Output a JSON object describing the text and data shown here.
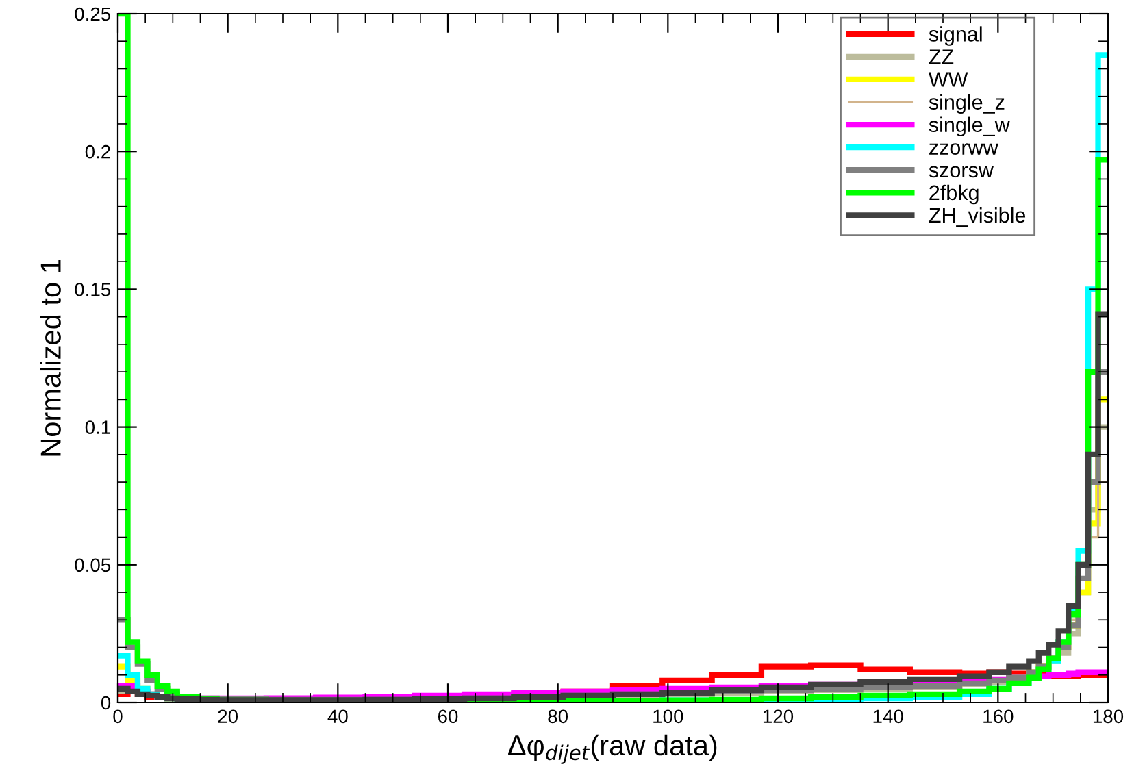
{
  "chart_data": {
    "type": "histogram",
    "xlabel": "Δφ$_{dijet}$(raw data)",
    "ylabel": "Normalized to 1",
    "bins": [
      0,
      1.8,
      3.6,
      5.4,
      7.2,
      9,
      10.8,
      14.4,
      18,
      27,
      36,
      45,
      54,
      63,
      72,
      81,
      90,
      99,
      108,
      117,
      126,
      135,
      144,
      153,
      158.4,
      162,
      165.6,
      167.4,
      169.2,
      171,
      172.8,
      174.6,
      176.4,
      178.2,
      180
    ],
    "xlim": [
      0,
      180
    ],
    "xticks": [
      0,
      20,
      40,
      60,
      80,
      100,
      120,
      140,
      160,
      180
    ],
    "ylim": [
      0,
      0.25
    ],
    "yticks": [
      0,
      0.05,
      0.1,
      0.15,
      0.2,
      0.25
    ],
    "legend": "top right",
    "grid": false,
    "series": [
      {
        "name": "signal",
        "color": "#ff0000",
        "values": [
          0.003,
          0.004,
          0.003,
          0.002,
          0.002,
          0.0015,
          0.0013,
          0.0012,
          0.0012,
          0.0012,
          0.0012,
          0.0013,
          0.0016,
          0.002,
          0.003,
          0.004,
          0.006,
          0.008,
          0.01,
          0.013,
          0.0135,
          0.012,
          0.011,
          0.0105,
          0.011,
          0.0105,
          0.01,
          0.01,
          0.0095,
          0.0095,
          0.0095,
          0.01,
          0.01,
          0.01
        ]
      },
      {
        "name": "ZZ",
        "color": "#bcbc9c",
        "values": [
          0.004,
          0.006,
          0.004,
          0.003,
          0.002,
          0.0015,
          0.001,
          0.001,
          0.0008,
          0.0008,
          0.0008,
          0.0009,
          0.001,
          0.0012,
          0.0015,
          0.002,
          0.0025,
          0.003,
          0.0035,
          0.004,
          0.0045,
          0.005,
          0.0055,
          0.0065,
          0.0075,
          0.009,
          0.011,
          0.013,
          0.015,
          0.018,
          0.025,
          0.04,
          0.07,
          0.1
        ]
      },
      {
        "name": "WW",
        "color": "#ffff00",
        "values": [
          0.013,
          0.008,
          0.005,
          0.003,
          0.002,
          0.0015,
          0.0012,
          0.001,
          0.001,
          0.001,
          0.0011,
          0.0013,
          0.0016,
          0.002,
          0.0025,
          0.003,
          0.0035,
          0.004,
          0.0045,
          0.005,
          0.0055,
          0.006,
          0.0065,
          0.007,
          0.008,
          0.009,
          0.011,
          0.013,
          0.016,
          0.02,
          0.028,
          0.04,
          0.065,
          0.11
        ]
      },
      {
        "name": "single_z",
        "color": "#d2b48c",
        "values": [
          0.006,
          0.005,
          0.004,
          0.003,
          0.002,
          0.0015,
          0.001,
          0.001,
          0.0008,
          0.0008,
          0.0008,
          0.0009,
          0.001,
          0.0012,
          0.0015,
          0.002,
          0.0025,
          0.003,
          0.0035,
          0.004,
          0.0045,
          0.005,
          0.0055,
          0.0065,
          0.0075,
          0.009,
          0.011,
          0.013,
          0.016,
          0.022,
          0.03,
          0.045,
          0.06,
          0.08
        ]
      },
      {
        "name": "single_w",
        "color": "#ff00ff",
        "values": [
          0.006,
          0.006,
          0.004,
          0.003,
          0.002,
          0.0018,
          0.0016,
          0.0015,
          0.0015,
          0.0016,
          0.0018,
          0.002,
          0.0025,
          0.003,
          0.0035,
          0.004,
          0.0045,
          0.005,
          0.0055,
          0.006,
          0.0065,
          0.007,
          0.0075,
          0.008,
          0.0085,
          0.009,
          0.0095,
          0.0095,
          0.01,
          0.01,
          0.0105,
          0.011,
          0.011,
          0.011
        ]
      },
      {
        "name": "zzorww",
        "color": "#00ffff",
        "values": [
          0.017,
          0.01,
          0.005,
          0.003,
          0.002,
          0.0015,
          0.001,
          0.0008,
          0.0006,
          0.0005,
          0.0005,
          0.0005,
          0.0005,
          0.0005,
          0.0006,
          0.0006,
          0.0007,
          0.0008,
          0.0009,
          0.001,
          0.0012,
          0.0015,
          0.002,
          0.003,
          0.005,
          0.007,
          0.009,
          0.012,
          0.015,
          0.022,
          0.033,
          0.055,
          0.15,
          0.235
        ]
      },
      {
        "name": "szorsw",
        "color": "#808080",
        "values": [
          0.03,
          0.02,
          0.014,
          0.008,
          0.005,
          0.003,
          0.002,
          0.0015,
          0.0012,
          0.001,
          0.001,
          0.001,
          0.0012,
          0.0015,
          0.002,
          0.0025,
          0.003,
          0.0035,
          0.004,
          0.0045,
          0.005,
          0.0055,
          0.006,
          0.007,
          0.008,
          0.009,
          0.011,
          0.013,
          0.016,
          0.02,
          0.028,
          0.045,
          0.08,
          0.12
        ]
      },
      {
        "name": "2fbkg",
        "color": "#00ff00",
        "values": [
          0.25,
          0.022,
          0.015,
          0.01,
          0.006,
          0.004,
          0.002,
          0.0012,
          0.0008,
          0.0005,
          0.0004,
          0.0004,
          0.0004,
          0.0004,
          0.0004,
          0.0005,
          0.0006,
          0.0008,
          0.001,
          0.0015,
          0.002,
          0.0025,
          0.003,
          0.004,
          0.005,
          0.007,
          0.009,
          0.012,
          0.016,
          0.022,
          0.032,
          0.05,
          0.12,
          0.197
        ]
      },
      {
        "name": "ZH_visible",
        "color": "#404040",
        "values": [
          0.005,
          0.004,
          0.003,
          0.0025,
          0.002,
          0.0015,
          0.0012,
          0.001,
          0.0009,
          0.0009,
          0.0009,
          0.001,
          0.0012,
          0.0015,
          0.002,
          0.0025,
          0.003,
          0.0035,
          0.0045,
          0.0055,
          0.0065,
          0.0075,
          0.0085,
          0.0095,
          0.011,
          0.013,
          0.015,
          0.018,
          0.021,
          0.026,
          0.035,
          0.05,
          0.09,
          0.141
        ]
      }
    ]
  }
}
